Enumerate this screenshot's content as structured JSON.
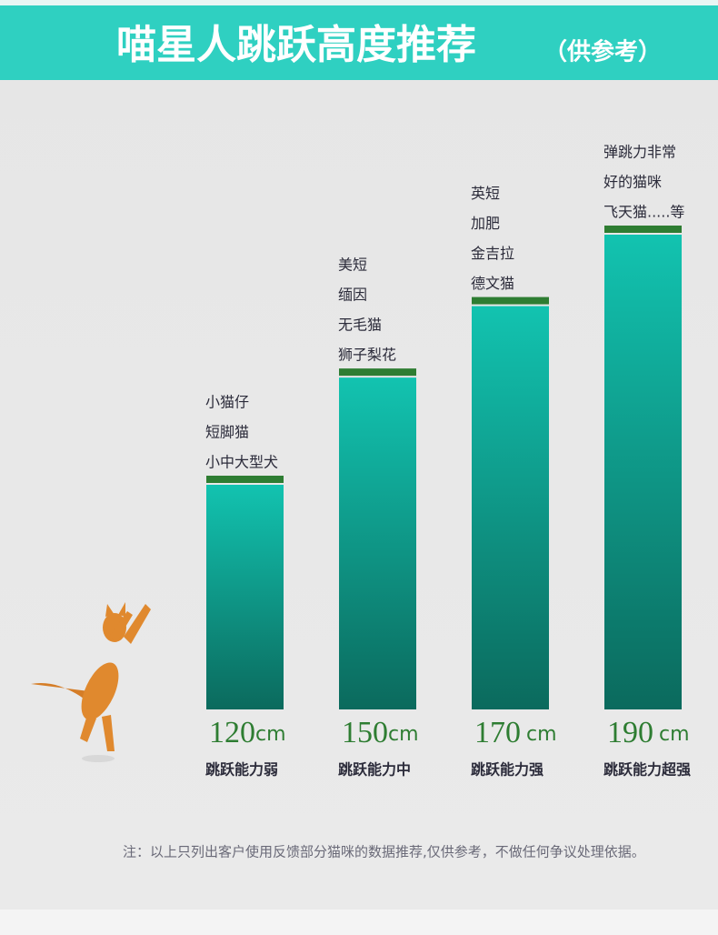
{
  "chart_data": {
    "type": "bar",
    "title": "喵星人跳跃高度推荐",
    "subtitle": "（供参考）",
    "categories": [
      "跳跃能力弱",
      "跳跃能力中",
      "跳跃能力强",
      "跳跃能力超强"
    ],
    "values": [
      120,
      150,
      170,
      190
    ],
    "unit": "cm",
    "breeds": [
      [
        "小猫仔",
        "短脚猫",
        "小中大型犬"
      ],
      [
        "美短",
        "缅因",
        "无毛猫",
        "狮子梨花"
      ],
      [
        "英短",
        "加肥",
        "金吉拉",
        "德文猫"
      ],
      [
        "弹跳力非常",
        "好的猫咪",
        "飞天猫.....等"
      ]
    ],
    "color": "#0fb9a6",
    "cap_color": "#2e7d32",
    "note": "注：以上只列出客户使用反馈部分猫咪的数据推荐,仅供参考，不做任何争议处理依据。"
  }
}
